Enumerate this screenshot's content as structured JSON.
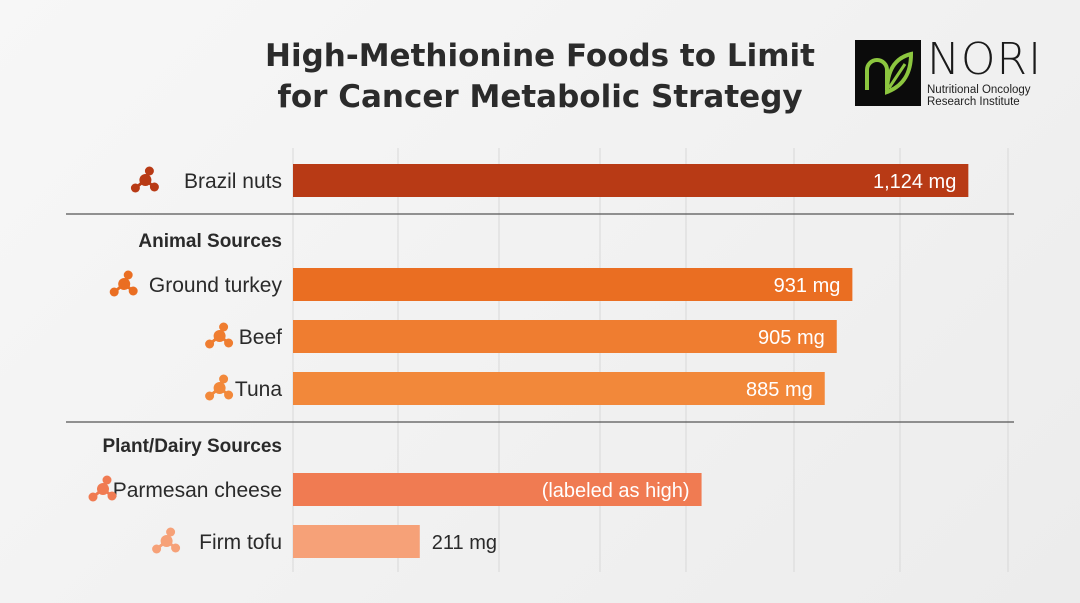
{
  "title_lines": [
    "High-Methionine Foods to Limit",
    "for Cancer Metabolic Strategy"
  ],
  "logo": {
    "name": "NORI",
    "subtitle_lines": [
      "Nutritional Oncology",
      "Research Institute"
    ],
    "accent": "#8cc63f"
  },
  "chart_data": {
    "type": "bar",
    "orientation": "horizontal",
    "grid": true,
    "unit": "mg",
    "xlim": [
      0,
      1190
    ],
    "sections": [
      {
        "label": "",
        "items": [
          {
            "label": "Brazil nuts",
            "value": 1124,
            "value_label": "1,124 mg",
            "color": "#b83a15"
          }
        ]
      },
      {
        "label": "Animal Sources",
        "items": [
          {
            "label": "Ground turkey",
            "value": 931,
            "value_label": "931 mg",
            "color": "#ea6e22"
          },
          {
            "label": "Beef",
            "value": 905,
            "value_label": "905 mg",
            "color": "#ef7d30"
          },
          {
            "label": "Tuna",
            "value": 885,
            "value_label": "885 mg",
            "color": "#f2883a"
          }
        ]
      },
      {
        "label": "Plant/Dairy Sources",
        "items": [
          {
            "label": "Parmesan cheese",
            "value": 680,
            "value_label": "(labeled as high)",
            "color": "#f07b52"
          },
          {
            "label": "Firm tofu",
            "value": 211,
            "value_label": "211 mg",
            "color": "#f6a178"
          }
        ]
      }
    ]
  }
}
